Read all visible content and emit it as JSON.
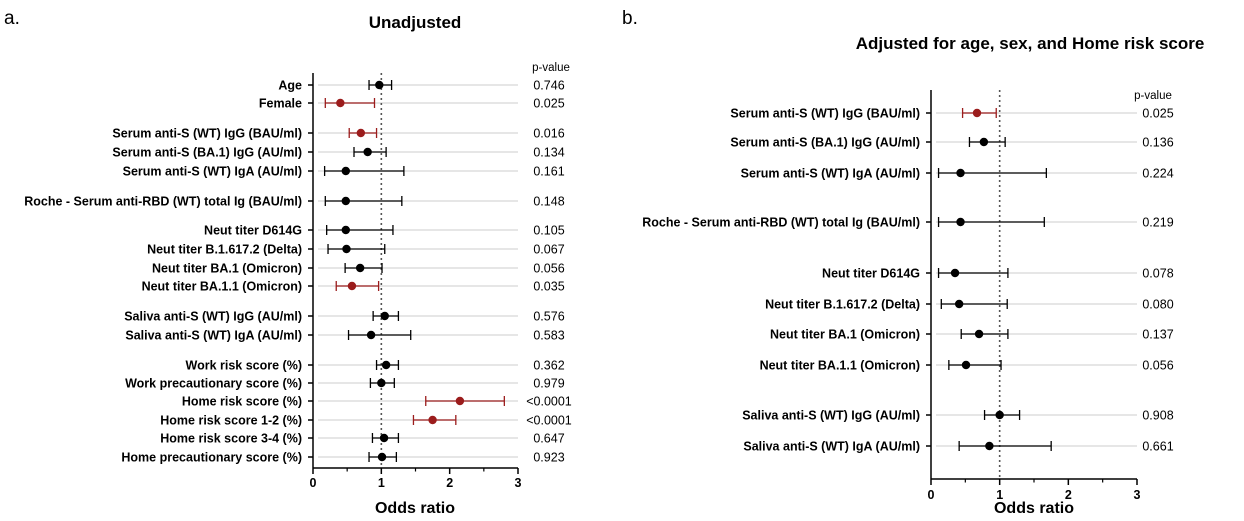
{
  "chart_data": [
    {
      "type": "forest",
      "panel_letter": "a.",
      "title": "Unadjusted",
      "xlabel": "Odds ratio",
      "xlim": [
        0,
        3
      ],
      "xticks": [
        "0",
        "1",
        "2",
        "3"
      ],
      "reference_line": 1,
      "pvalue_header": "p-value",
      "colors": {
        "significant": "#9b1c1c",
        "nonsignificant": "#000000",
        "rowline": "#d8d8d8",
        "refline": "#555555"
      },
      "rows": [
        {
          "label": "Age",
          "or": 0.97,
          "lo": 0.82,
          "hi": 1.15,
          "p": "0.746",
          "significant": false
        },
        {
          "label": "Female",
          "or": 0.4,
          "lo": 0.18,
          "hi": 0.9,
          "p": "0.025",
          "significant": true
        },
        {
          "label": "Serum anti-S (WT) IgG (BAU/ml)",
          "or": 0.7,
          "lo": 0.53,
          "hi": 0.93,
          "p": "0.016",
          "significant": true
        },
        {
          "label": "Serum anti-S (BA.1) IgG (AU/ml)",
          "or": 0.8,
          "lo": 0.6,
          "hi": 1.07,
          "p": "0.134",
          "significant": false
        },
        {
          "label": "Serum anti-S (WT) IgA (AU/ml)",
          "or": 0.48,
          "lo": 0.17,
          "hi": 1.33,
          "p": "0.161",
          "significant": false
        },
        {
          "label": "Roche - Serum anti-RBD (WT) total Ig (BAU/ml)",
          "or": 0.48,
          "lo": 0.18,
          "hi": 1.3,
          "p": "0.148",
          "significant": false
        },
        {
          "label": "Neut titer D614G",
          "or": 0.48,
          "lo": 0.2,
          "hi": 1.17,
          "p": "0.105",
          "significant": false
        },
        {
          "label": "Neut titer B.1.617.2 (Delta)",
          "or": 0.49,
          "lo": 0.22,
          "hi": 1.05,
          "p": "0.067",
          "significant": false
        },
        {
          "label": "Neut titer BA.1 (Omicron)",
          "or": 0.69,
          "lo": 0.47,
          "hi": 1.01,
          "p": "0.056",
          "significant": false
        },
        {
          "label": "Neut titer BA.1.1 (Omicron)",
          "or": 0.57,
          "lo": 0.34,
          "hi": 0.96,
          "p": "0.035",
          "significant": true
        },
        {
          "label": "Saliva anti-S (WT) IgG (AU/ml)",
          "or": 1.05,
          "lo": 0.88,
          "hi": 1.25,
          "p": "0.576",
          "significant": false
        },
        {
          "label": "Saliva anti-S (WT) IgA (AU/ml)",
          "or": 0.85,
          "lo": 0.52,
          "hi": 1.43,
          "p": "0.583",
          "significant": false
        },
        {
          "label": "Work risk score (%)",
          "or": 1.07,
          "lo": 0.93,
          "hi": 1.25,
          "p": "0.362",
          "significant": false
        },
        {
          "label": "Work precautionary score (%)",
          "or": 1.0,
          "lo": 0.84,
          "hi": 1.19,
          "p": "0.979",
          "significant": false
        },
        {
          "label": "Home risk score (%)",
          "or": 2.15,
          "lo": 1.65,
          "hi": 2.8,
          "p": "<0.0001",
          "significant": true
        },
        {
          "label": "Home risk score 1-2 (%)",
          "or": 1.75,
          "lo": 1.47,
          "hi": 2.09,
          "p": "<0.0001",
          "significant": true
        },
        {
          "label": "Home risk score 3-4 (%)",
          "or": 1.04,
          "lo": 0.87,
          "hi": 1.25,
          "p": "0.647",
          "significant": false
        },
        {
          "label": "Home precautionary score (%)",
          "or": 1.01,
          "lo": 0.82,
          "hi": 1.22,
          "p": "0.923",
          "significant": false
        }
      ]
    },
    {
      "type": "forest",
      "panel_letter": "b.",
      "title": "Adjusted for age, sex, and Home risk score",
      "xlabel": "Odds ratio",
      "xlim": [
        0,
        3
      ],
      "xticks": [
        "0",
        "1",
        "2",
        "3"
      ],
      "reference_line": 1,
      "pvalue_header": "p-value",
      "colors": {
        "significant": "#9b1c1c",
        "nonsignificant": "#000000",
        "rowline": "#d8d8d8",
        "refline": "#555555"
      },
      "rows": [
        {
          "label": "Serum anti-S (WT) IgG (BAU/ml)",
          "or": 0.67,
          "lo": 0.46,
          "hi": 0.95,
          "p": "0.025",
          "significant": true
        },
        {
          "label": "Serum anti-S (BA.1) IgG (AU/ml)",
          "or": 0.77,
          "lo": 0.56,
          "hi": 1.08,
          "p": "0.136",
          "significant": false
        },
        {
          "label": "Serum anti-S (WT) IgA (AU/ml)",
          "or": 0.43,
          "lo": 0.11,
          "hi": 1.68,
          "p": "0.224",
          "significant": false
        },
        {
          "label": "Roche - Serum anti-RBD (WT) total Ig (BAU/ml)",
          "or": 0.43,
          "lo": 0.11,
          "hi": 1.65,
          "p": "0.219",
          "significant": false
        },
        {
          "label": "Neut titer D614G",
          "or": 0.35,
          "lo": 0.11,
          "hi": 1.12,
          "p": "0.078",
          "significant": false
        },
        {
          "label": "Neut titer B.1.617.2 (Delta)",
          "or": 0.41,
          "lo": 0.15,
          "hi": 1.11,
          "p": "0.080",
          "significant": false
        },
        {
          "label": "Neut titer BA.1 (Omicron)",
          "or": 0.7,
          "lo": 0.44,
          "hi": 1.12,
          "p": "0.137",
          "significant": false
        },
        {
          "label": "Neut titer BA.1.1 (Omicron)",
          "or": 0.51,
          "lo": 0.26,
          "hi": 1.02,
          "p": "0.056",
          "significant": false
        },
        {
          "label": "Saliva anti-S (WT) IgG (AU/ml)",
          "or": 1.0,
          "lo": 0.78,
          "hi": 1.29,
          "p": "0.908",
          "significant": false
        },
        {
          "label": "Saliva anti-S (WT) IgA (AU/ml)",
          "or": 0.85,
          "lo": 0.41,
          "hi": 1.75,
          "p": "0.661",
          "significant": false
        }
      ]
    }
  ]
}
